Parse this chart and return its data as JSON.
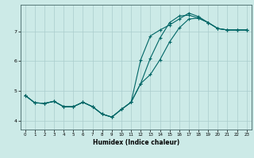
{
  "title": "",
  "xlabel": "Humidex (Indice chaleur)",
  "ylabel": "",
  "background_color": "#cceae7",
  "grid_color": "#aacccc",
  "line_color": "#006666",
  "xlim": [
    -0.5,
    23.5
  ],
  "ylim": [
    3.7,
    7.9
  ],
  "yticks": [
    4,
    5,
    6,
    7
  ],
  "xticks": [
    0,
    1,
    2,
    3,
    4,
    5,
    6,
    7,
    8,
    9,
    10,
    11,
    12,
    13,
    14,
    15,
    16,
    17,
    18,
    19,
    20,
    21,
    22,
    23
  ],
  "line1_x": [
    0,
    1,
    2,
    3,
    4,
    5,
    6,
    7,
    8,
    9,
    10,
    11,
    12,
    13,
    14,
    15,
    16,
    17,
    18,
    19,
    20,
    21,
    22,
    23
  ],
  "line1_y": [
    4.85,
    4.6,
    4.58,
    4.65,
    4.47,
    4.47,
    4.62,
    4.47,
    4.22,
    4.12,
    4.38,
    4.62,
    5.25,
    6.1,
    6.78,
    7.3,
    7.52,
    7.55,
    7.45,
    7.3,
    7.1,
    7.05,
    7.05,
    7.05
  ],
  "line2_x": [
    0,
    1,
    2,
    3,
    4,
    5,
    6,
    7,
    8,
    9,
    10,
    11,
    12,
    13,
    14,
    15,
    16,
    17,
    18,
    19,
    20,
    21,
    22,
    23
  ],
  "line2_y": [
    4.85,
    4.6,
    4.58,
    4.65,
    4.47,
    4.47,
    4.62,
    4.47,
    4.22,
    4.12,
    4.38,
    4.62,
    6.05,
    6.85,
    7.05,
    7.22,
    7.42,
    7.62,
    7.5,
    7.3,
    7.1,
    7.05,
    7.05,
    7.05
  ],
  "line3_x": [
    0,
    1,
    2,
    3,
    4,
    5,
    6,
    7,
    8,
    9,
    10,
    11,
    12,
    13,
    14,
    15,
    16,
    17,
    18,
    19,
    20,
    21,
    22,
    23
  ],
  "line3_y": [
    4.85,
    4.6,
    4.58,
    4.65,
    4.47,
    4.47,
    4.62,
    4.47,
    4.22,
    4.12,
    4.38,
    4.62,
    5.25,
    5.55,
    6.05,
    6.65,
    7.12,
    7.42,
    7.45,
    7.3,
    7.1,
    7.05,
    7.05,
    7.05
  ]
}
